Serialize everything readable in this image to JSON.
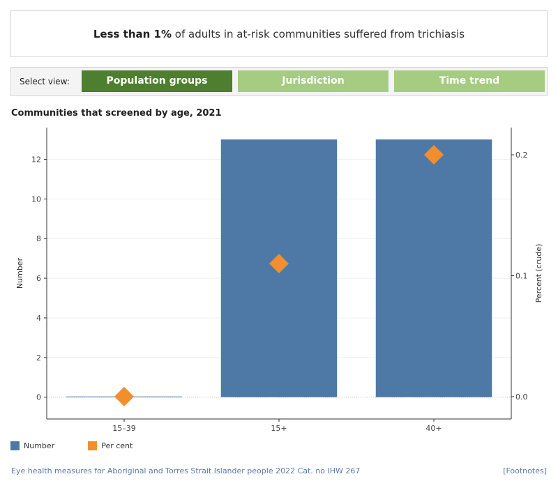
{
  "headline": {
    "bold_text": "Less than 1%",
    "rest_text": " of adults in at-risk communities suffered from trichiasis"
  },
  "view_selector": {
    "label": "Select view:",
    "buttons": [
      {
        "label": "Population groups",
        "active": true
      },
      {
        "label": "Jurisdiction",
        "active": false
      },
      {
        "label": "Time trend",
        "active": false
      }
    ]
  },
  "chart_data": {
    "type": "bar",
    "title": "Communities that screened by age, 2021",
    "categories": [
      "15–39",
      "15+",
      "40+"
    ],
    "series": [
      {
        "name": "Number",
        "kind": "bar",
        "axis": "left",
        "color": "#4e79a7",
        "values": [
          0,
          13,
          13
        ]
      },
      {
        "name": "Per cent",
        "kind": "diamond",
        "axis": "right",
        "color": "#f28e2b",
        "values": [
          0.0,
          0.11,
          0.2
        ]
      }
    ],
    "ylabel": "Number",
    "y2label": "Percent (crude)",
    "ylim": [
      -1.1,
      13.6
    ],
    "y2lim": [
      -0.0185,
      0.2225
    ],
    "yticks": [
      0,
      2,
      4,
      6,
      8,
      10,
      12
    ],
    "y2ticks": [
      "0.0",
      "0.1",
      "0.2"
    ],
    "y2tickvalues": [
      0.0,
      0.1,
      0.2
    ],
    "legend_position": "bottom-left"
  },
  "legend": {
    "items": [
      {
        "label": "Number",
        "color": "#4e79a7"
      },
      {
        "label": "Per cent",
        "color": "#f28e2b"
      }
    ]
  },
  "footer": {
    "source": "Eye health measures for Aboriginal and Torres Strait Islander people 2022 Cat. no IHW 267",
    "footnotes_link": "[Footnotes]"
  }
}
